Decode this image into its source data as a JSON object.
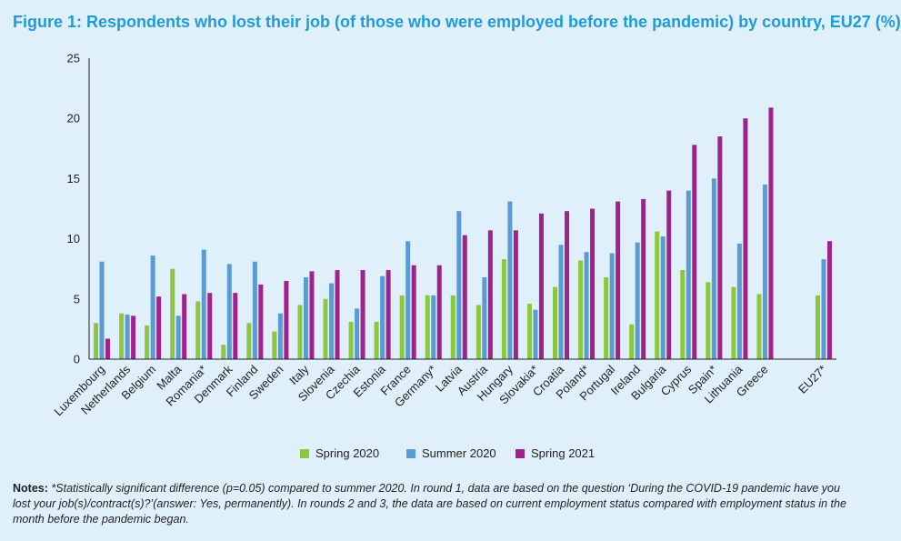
{
  "title": "Figure 1: Respondents who lost their job (of those who were employed before the pandemic) by country, EU27 (%)",
  "notes": {
    "label": "Notes:",
    "text": "*Statistically significant difference (p=0.05) compared to summer 2020. In round 1, data are based on the question ‘During the COVID-19 pandemic have you lost your job(s)/contract(s)?’(answer: Yes, permanently). In rounds 2 and 3, the data are based on current employment status compared with employment status in the month before the pandemic began."
  },
  "chart_data": {
    "type": "bar",
    "title": "Figure 1: Respondents who lost their job (of those who were employed before the pandemic) by country, EU27 (%)",
    "xlabel": "",
    "ylabel": "",
    "ylim": [
      0,
      25
    ],
    "yticks": [
      0,
      5,
      10,
      15,
      20,
      25
    ],
    "grid": false,
    "legend_position": "bottom",
    "categories": [
      "Luxembourg",
      "Netherlands",
      "Belgium",
      "Malta",
      "Romania*",
      "Denmark",
      "Finland",
      "Sweden",
      "Italy",
      "Slovenia",
      "Czechia",
      "Estonia",
      "France",
      "Germany*",
      "Latvia",
      "Austria",
      "Hungary",
      "Slovakia*",
      "Croatia",
      "Poland*",
      "Portugal",
      "Ireland",
      "Bulgaria",
      "Cyprus",
      "Spain*",
      "Lithuania",
      "Greece",
      "EU27*"
    ],
    "series": [
      {
        "name": "Spring 2020",
        "color": "#8dc63f",
        "values": [
          3.0,
          3.8,
          2.8,
          7.5,
          4.8,
          1.2,
          3.0,
          2.3,
          4.5,
          5.0,
          3.1,
          3.1,
          5.3,
          5.3,
          5.3,
          4.5,
          8.3,
          4.6,
          6.0,
          8.2,
          6.8,
          2.9,
          10.6,
          7.4,
          6.4,
          6.0,
          5.4,
          5.3
        ]
      },
      {
        "name": "Summer 2020",
        "color": "#5b9bd5",
        "values": [
          8.1,
          3.7,
          8.6,
          3.6,
          9.1,
          7.9,
          8.1,
          3.8,
          6.8,
          6.3,
          4.2,
          6.9,
          9.8,
          5.3,
          12.3,
          6.8,
          13.1,
          4.1,
          9.5,
          8.9,
          8.8,
          9.7,
          10.2,
          14.0,
          15.0,
          9.6,
          14.5,
          8.3
        ]
      },
      {
        "name": "Spring 2021",
        "color": "#a3218d",
        "values": [
          1.7,
          3.6,
          5.2,
          5.4,
          5.5,
          5.5,
          6.2,
          6.5,
          7.3,
          7.4,
          7.4,
          7.4,
          7.8,
          7.8,
          10.3,
          10.7,
          10.7,
          12.1,
          12.3,
          12.5,
          13.1,
          13.3,
          14.0,
          17.8,
          18.5,
          20.0,
          20.9,
          9.8
        ]
      }
    ]
  }
}
